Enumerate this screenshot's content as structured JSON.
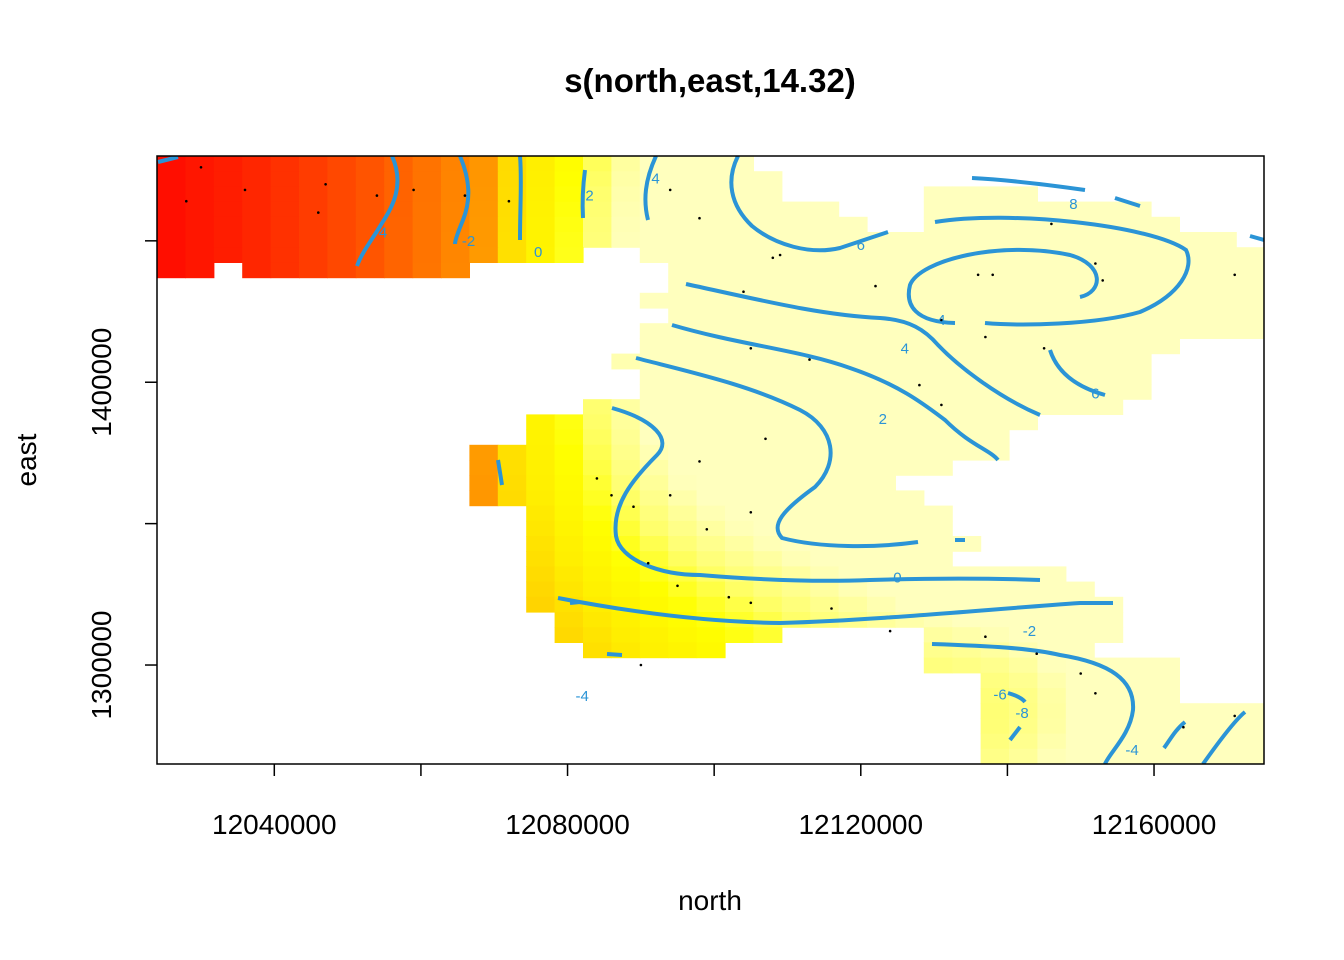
{
  "chart_data": {
    "type": "heatmap",
    "title": "s(north,east,14.32)",
    "xlabel": "north",
    "ylabel": "east",
    "xlim": [
      12024000,
      12175000
    ],
    "ylim": [
      1265000,
      1480000
    ],
    "x_ticks": [
      12040000,
      12060000,
      12080000,
      12100000,
      12120000,
      12140000,
      12160000
    ],
    "x_tick_labels": [
      "12040000",
      "",
      "12080000",
      "",
      "12120000",
      "",
      "12160000"
    ],
    "y_ticks": [
      1300000,
      1350000,
      1400000,
      1450000
    ],
    "y_tick_labels": [
      "1300000",
      "",
      "1400000",
      ""
    ],
    "colorscale": "heat (red → orange → yellow → white)",
    "contour_color": "#2b94d6",
    "contours": [
      {
        "level": "-4",
        "label_pos": [
          12054500,
          1453000
        ]
      },
      {
        "level": "-2",
        "label_pos": [
          12066500,
          1450000
        ]
      },
      {
        "level": "0",
        "label_pos": [
          12076000,
          1446000
        ]
      },
      {
        "level": "2",
        "label_pos": [
          12083000,
          1466000
        ]
      },
      {
        "level": "4",
        "label_pos": [
          12092000,
          1472000
        ]
      },
      {
        "level": "6",
        "label_pos": [
          12120000,
          1448500
        ]
      },
      {
        "level": "8",
        "label_pos": [
          12149000,
          1463000
        ]
      },
      {
        "level": "4",
        "label_pos": [
          12131000,
          1422000
        ]
      },
      {
        "level": "4",
        "label_pos": [
          12126000,
          1412000
        ]
      },
      {
        "level": "6",
        "label_pos": [
          12152000,
          1396000
        ]
      },
      {
        "level": "2",
        "label_pos": [
          12123000,
          1387000
        ]
      },
      {
        "level": "0",
        "label_pos": [
          12125000,
          1331000
        ]
      },
      {
        "level": "-2",
        "label_pos": [
          12143000,
          1312000
        ]
      },
      {
        "level": "-4",
        "label_pos": [
          12082000,
          1289000
        ]
      },
      {
        "level": "-6",
        "label_pos": [
          12139000,
          1289500
        ]
      },
      {
        "level": "-8",
        "label_pos": [
          12142000,
          1283000
        ]
      },
      {
        "level": "-4",
        "label_pos": [
          12157000,
          1270000
        ]
      }
    ],
    "data_points": [
      [
        12030000,
        1476000
      ],
      [
        12028000,
        1464000
      ],
      [
        12036000,
        1468000
      ],
      [
        12047000,
        1470000
      ],
      [
        12046000,
        1460000
      ],
      [
        12054000,
        1466000
      ],
      [
        12059000,
        1468000
      ],
      [
        12066000,
        1466000
      ],
      [
        12072000,
        1464000
      ],
      [
        12094000,
        1468000
      ],
      [
        12098000,
        1458000
      ],
      [
        12108000,
        1444000
      ],
      [
        12109000,
        1445000
      ],
      [
        12104000,
        1432000
      ],
      [
        12122000,
        1434000
      ],
      [
        12136000,
        1438000
      ],
      [
        12138000,
        1438000
      ],
      [
        12146000,
        1456000
      ],
      [
        12153000,
        1436000
      ],
      [
        12152000,
        1442000
      ],
      [
        12171000,
        1438000
      ],
      [
        12131000,
        1422000
      ],
      [
        12145000,
        1412000
      ],
      [
        12137000,
        1416000
      ],
      [
        12105000,
        1412000
      ],
      [
        12113000,
        1408000
      ],
      [
        12128000,
        1399000
      ],
      [
        12131000,
        1392000
      ],
      [
        12098000,
        1372000
      ],
      [
        12107000,
        1380000
      ],
      [
        12084000,
        1366000
      ],
      [
        12086000,
        1360000
      ],
      [
        12094000,
        1360000
      ],
      [
        12089000,
        1356000
      ],
      [
        12105000,
        1354000
      ],
      [
        12099000,
        1348000
      ],
      [
        12091000,
        1336000
      ],
      [
        12095000,
        1328000
      ],
      [
        12102000,
        1324000
      ],
      [
        12105000,
        1322000
      ],
      [
        12116000,
        1320000
      ],
      [
        12124000,
        1312000
      ],
      [
        12144000,
        1304000
      ],
      [
        12150000,
        1297000
      ],
      [
        12152000,
        1290000
      ],
      [
        12164000,
        1278000
      ],
      [
        12171000,
        1282000
      ],
      [
        12090000,
        1300000
      ],
      [
        12137000,
        1310000
      ]
    ]
  }
}
